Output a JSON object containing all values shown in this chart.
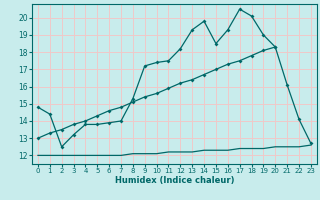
{
  "xlabel": "Humidex (Indice chaleur)",
  "ylabel": "",
  "bg_color": "#c8ecec",
  "grid_color": "#f0c8c8",
  "line_color": "#006868",
  "xlim": [
    -0.5,
    23.5
  ],
  "ylim": [
    11.5,
    20.8
  ],
  "xticks": [
    0,
    1,
    2,
    3,
    4,
    5,
    6,
    7,
    8,
    9,
    10,
    11,
    12,
    13,
    14,
    15,
    16,
    17,
    18,
    19,
    20,
    21,
    22,
    23
  ],
  "yticks": [
    12,
    13,
    14,
    15,
    16,
    17,
    18,
    19,
    20
  ],
  "line1_x": [
    0,
    1,
    2,
    3,
    4,
    5,
    6,
    7,
    8,
    9,
    10,
    11,
    12,
    13,
    14,
    15,
    16,
    17,
    18,
    19,
    20,
    21,
    22,
    23
  ],
  "line1_y": [
    14.8,
    14.4,
    12.5,
    13.2,
    13.8,
    13.8,
    13.9,
    14.0,
    15.3,
    17.2,
    17.4,
    17.5,
    18.2,
    19.3,
    19.8,
    18.5,
    19.3,
    20.5,
    20.1,
    19.0,
    18.3,
    16.1,
    14.1,
    12.7
  ],
  "line2_x": [
    0,
    1,
    2,
    3,
    4,
    5,
    6,
    7,
    8,
    9,
    10,
    11,
    12,
    13,
    14,
    15,
    16,
    17,
    18,
    19,
    20
  ],
  "line2_y": [
    13.0,
    13.3,
    13.5,
    13.8,
    14.0,
    14.3,
    14.6,
    14.8,
    15.1,
    15.4,
    15.6,
    15.9,
    16.2,
    16.4,
    16.7,
    17.0,
    17.3,
    17.5,
    17.8,
    18.1,
    18.3
  ],
  "line3_x": [
    0,
    1,
    2,
    3,
    4,
    5,
    6,
    7,
    8,
    9,
    10,
    11,
    12,
    13,
    14,
    15,
    16,
    17,
    18,
    19,
    20,
    21,
    22,
    23
  ],
  "line3_y": [
    12.0,
    12.0,
    12.0,
    12.0,
    12.0,
    12.0,
    12.0,
    12.0,
    12.1,
    12.1,
    12.1,
    12.2,
    12.2,
    12.2,
    12.3,
    12.3,
    12.3,
    12.4,
    12.4,
    12.4,
    12.5,
    12.5,
    12.5,
    12.6
  ]
}
